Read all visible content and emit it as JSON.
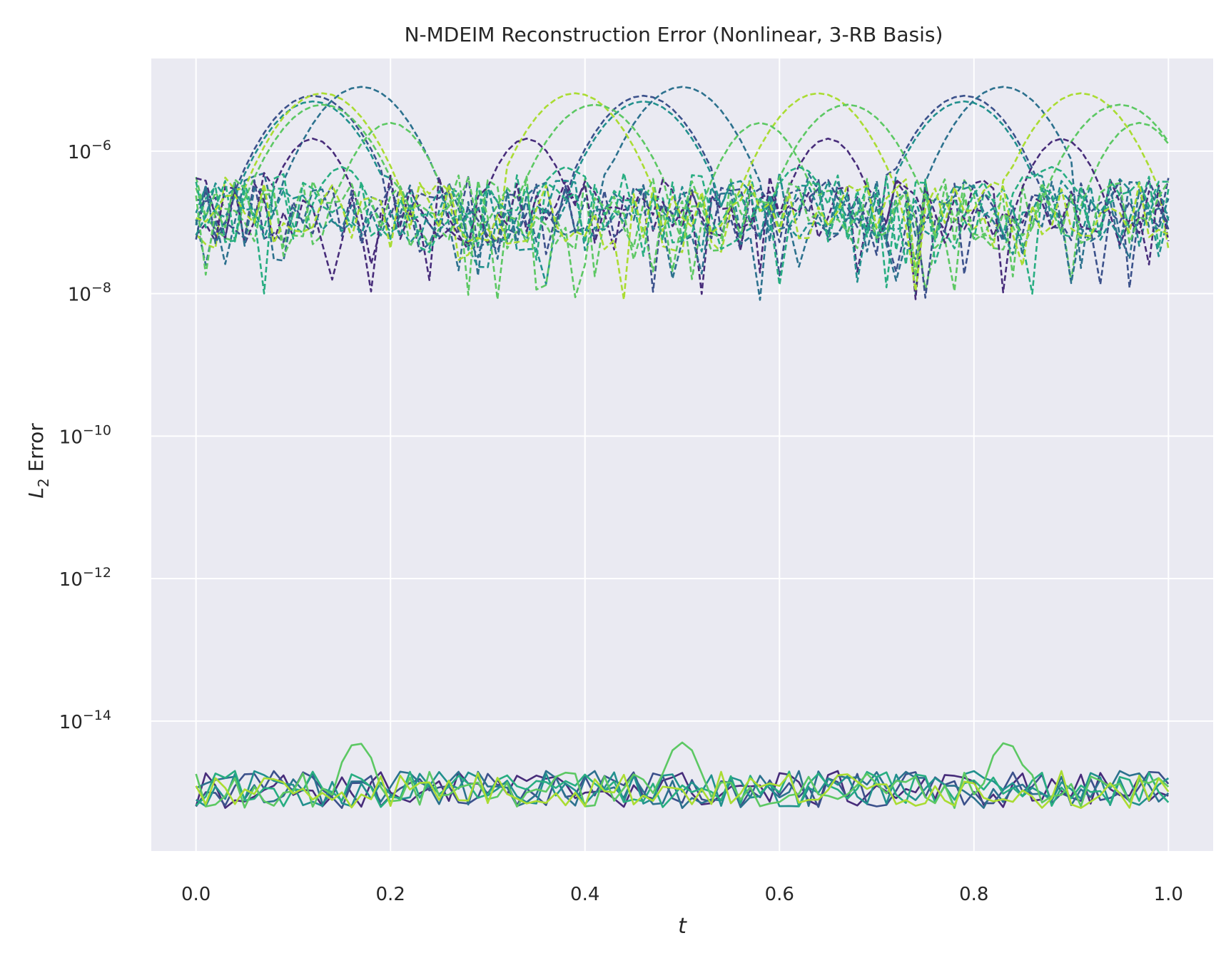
{
  "chart_data": {
    "type": "line",
    "title": "N-MDEIM Reconstruction Error (Nonlinear, 3-RB Basis)",
    "xlabel": "t",
    "ylabel_main": "L",
    "ylabel_sub": "2",
    "ylabel_rest": " Error",
    "x_scale": "linear",
    "y_scale": "log",
    "xlim": [
      -0.046,
      1.046
    ],
    "ylim": [
      1.5e-16,
      2e-05
    ],
    "grid": true,
    "legend": "none",
    "background": "#eaeaf2",
    "x_ticks": [
      0.0,
      0.2,
      0.4,
      0.6,
      0.8,
      1.0
    ],
    "x_tick_labels": [
      "0.0",
      "0.2",
      "0.4",
      "0.6",
      "0.8",
      "1.0"
    ],
    "y_tick_exponents": [
      -14,
      -12,
      -10,
      -8,
      -6
    ],
    "y_tick_base": "10",
    "y_tick_labels": [
      "−14",
      "−12",
      "−10",
      "−8",
      "−6"
    ],
    "colors": [
      "#472c7a",
      "#3b518b",
      "#2c718e",
      "#21908d",
      "#27ad81",
      "#5cc863",
      "#aadc32"
    ],
    "series_groups": [
      {
        "style": "dashed",
        "description": "upper family, t in [0,1], 101 samples",
        "baseline_range": [
          1e-08,
          5e-07
        ],
        "bumps": [
          {
            "color": "#3b518b",
            "centers": [
              0.12,
              0.46,
              0.79
            ],
            "peak": 6e-06,
            "width": 0.05
          },
          {
            "color": "#2c718e",
            "centers": [
              0.17,
              0.5,
              0.83
            ],
            "peak": 8e-06,
            "width": 0.05
          },
          {
            "color": "#21908d",
            "centers": [
              0.12,
              0.46,
              0.79
            ],
            "peak": 5e-06,
            "width": 0.05
          },
          {
            "color": "#aadc32",
            "centers": [
              0.13,
              0.39,
              0.64,
              0.91
            ],
            "peak": 6.5e-06,
            "width": 0.05
          },
          {
            "color": "#5cc863",
            "centers": [
              0.13,
              0.41,
              0.67,
              0.95
            ],
            "peak": 4.5e-06,
            "width": 0.05
          },
          {
            "color": "#5cc863",
            "centers": [
              0.2,
              0.58,
              0.97
            ],
            "peak": 2.5e-06,
            "width": 0.04
          },
          {
            "color": "#472c7a",
            "centers": [
              0.12,
              0.34,
              0.65,
              0.89
            ],
            "peak": 1.5e-06,
            "width": 0.035
          },
          {
            "color": "#27ad81",
            "centers": [
              0.15,
              0.38,
              0.62,
              0.88
            ],
            "peak": 6e-07,
            "width": 0.03
          }
        ]
      },
      {
        "style": "solid",
        "description": "lower family near machine precision",
        "baseline_range": [
          5e-16,
          2.5e-15
        ],
        "bumps": [
          {
            "color": "#5cc863",
            "centers": [
              0.166,
              0.5,
              0.833
            ],
            "peak": 5e-15,
            "width": 0.02
          }
        ],
        "lines": 7
      }
    ]
  }
}
